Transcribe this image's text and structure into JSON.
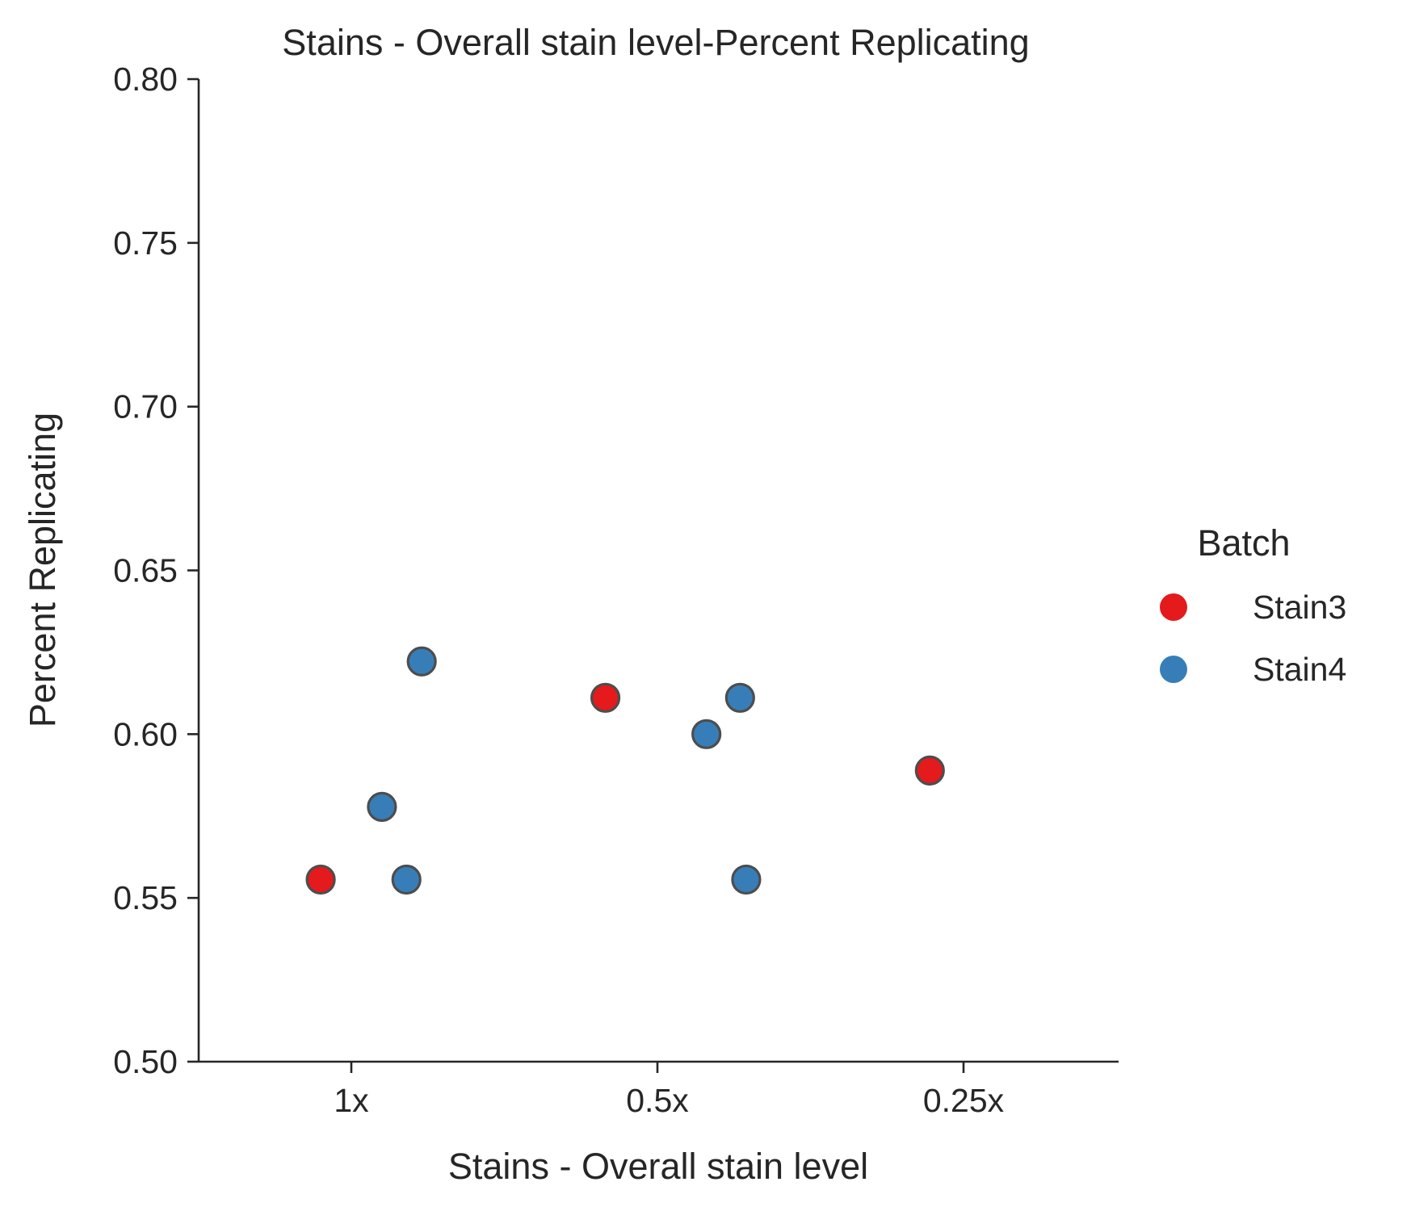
{
  "chart_data": {
    "type": "scatter",
    "title": "Stains - Overall stain level-Percent Replicating",
    "xlabel": "Stains - Overall stain level",
    "ylabel": "Percent Replicating",
    "categories": [
      "1x",
      "0.5x",
      "0.25x"
    ],
    "ylim": [
      0.5,
      0.8
    ],
    "yticks": [
      "0.50",
      "0.55",
      "0.60",
      "0.65",
      "0.70",
      "0.75",
      "0.80"
    ],
    "grid": false,
    "legend": {
      "title": "Batch",
      "placement": "right",
      "entries": [
        {
          "name": "Stain3",
          "color": "#e41a1c"
        },
        {
          "name": "Stain4",
          "color": "#377eb8"
        }
      ]
    },
    "series": [
      {
        "name": "Stain3",
        "color": "#e41a1c",
        "points": [
          {
            "category": "1x",
            "jitter": -0.1,
            "y": 0.5556
          },
          {
            "category": "0.5x",
            "jitter": -0.17,
            "y": 0.6111
          },
          {
            "category": "0.25x",
            "jitter": -0.11,
            "y": 0.5889
          }
        ]
      },
      {
        "name": "Stain4",
        "color": "#377eb8",
        "points": [
          {
            "category": "1x",
            "jitter": 0.23,
            "y": 0.6222
          },
          {
            "category": "1x",
            "jitter": 0.1,
            "y": 0.5778
          },
          {
            "category": "1x",
            "jitter": 0.18,
            "y": 0.5556
          },
          {
            "category": "0.5x",
            "jitter": 0.27,
            "y": 0.6111
          },
          {
            "category": "0.5x",
            "jitter": 0.16,
            "y": 0.6
          },
          {
            "category": "0.5x",
            "jitter": 0.29,
            "y": 0.5556
          }
        ]
      }
    ]
  }
}
